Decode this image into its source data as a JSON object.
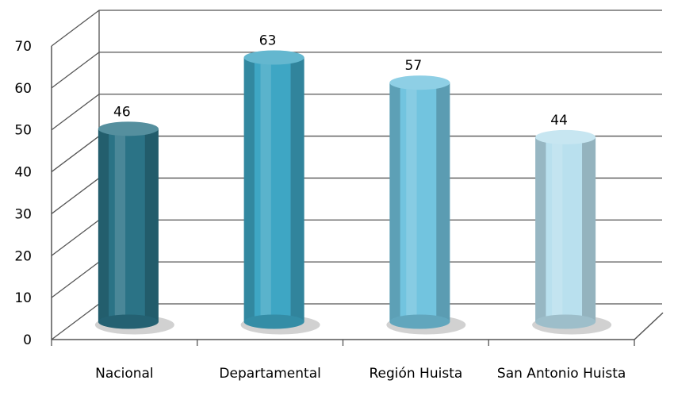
{
  "chart_data": {
    "type": "bar3d",
    "categories": [
      "Nacional",
      "Departamental",
      "Región Huista",
      "San Antonio Huista"
    ],
    "values": [
      46,
      63,
      57,
      44
    ],
    "colors": [
      "#2b7386",
      "#3ea6c4",
      "#72c4df",
      "#b9e0ee"
    ],
    "ylim": [
      0,
      70
    ],
    "yticks": [
      0,
      10,
      20,
      30,
      40,
      50,
      60,
      70
    ],
    "grid": true
  }
}
